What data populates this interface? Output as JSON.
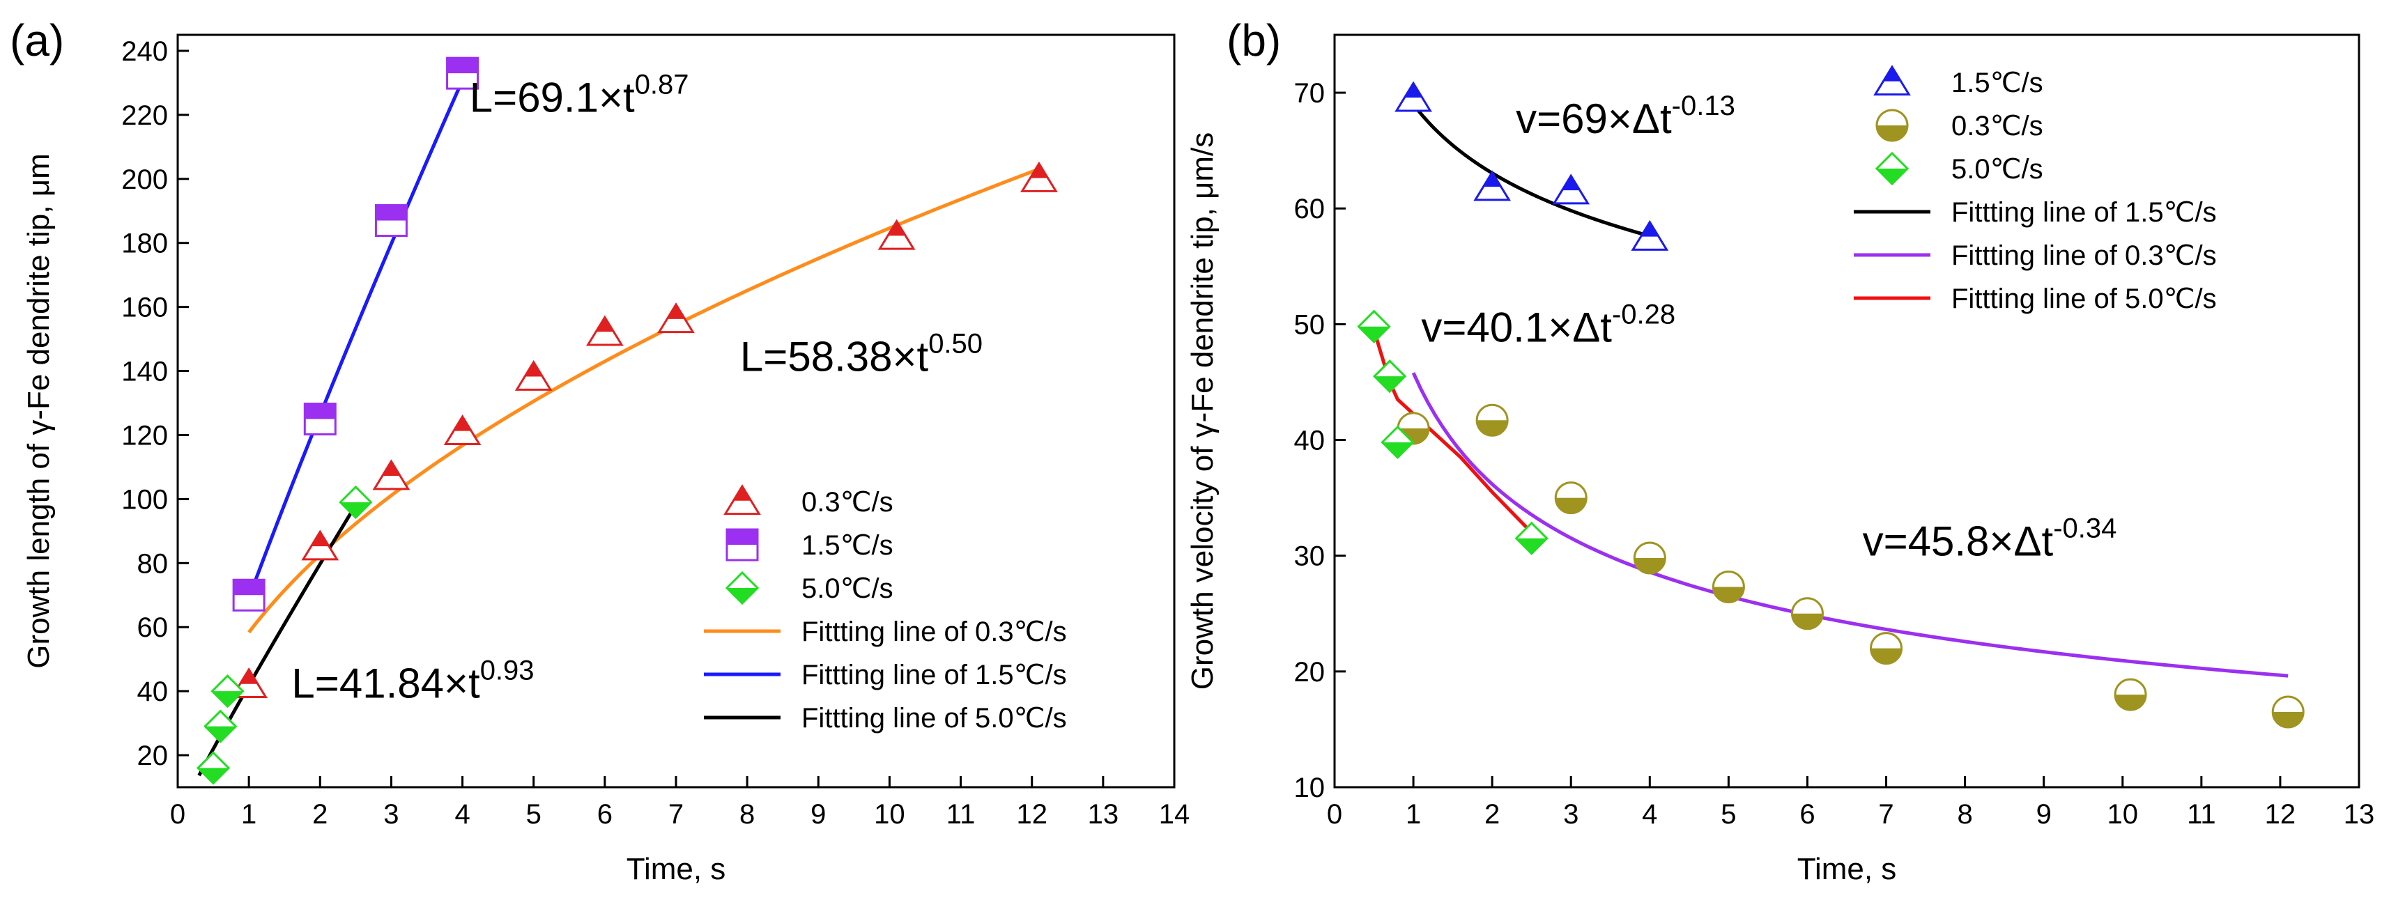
{
  "chart_data": [
    {
      "type": "scatter",
      "panel_label": "(a)",
      "xlabel": "Time, s",
      "ylabel": "Growth length of γ-Fe dendrite tip, μm",
      "xlim": [
        0,
        14
      ],
      "ylim": [
        10,
        245
      ],
      "x_ticks": [
        0,
        1,
        2,
        3,
        4,
        5,
        6,
        7,
        8,
        9,
        10,
        11,
        12,
        13,
        14
      ],
      "y_ticks": [
        20,
        40,
        60,
        80,
        100,
        120,
        140,
        160,
        180,
        200,
        220,
        240
      ],
      "series": [
        {
          "name": "0.3℃/s",
          "marker": "triangle",
          "color": "#e02020",
          "x": [
            1.0,
            2.0,
            3.0,
            4.0,
            5.0,
            6.0,
            7.0,
            10.1,
            12.1
          ],
          "y": [
            42,
            85,
            107,
            121,
            138,
            152,
            156,
            182,
            200
          ]
        },
        {
          "name": "1.5℃/s",
          "marker": "square",
          "color": "#9b30f0",
          "x": [
            1.0,
            2.0,
            3.0,
            4.0
          ],
          "y": [
            70,
            125,
            187,
            233
          ]
        },
        {
          "name": "5.0℃/s",
          "marker": "diamond",
          "color": "#22dd22",
          "x": [
            0.5,
            0.6,
            0.7,
            2.5
          ],
          "y": [
            16,
            29,
            40,
            99
          ]
        }
      ],
      "fits": [
        {
          "name": "Fittting line of 0.3℃/s",
          "color": "#ff8c1a",
          "a": 58.38,
          "b": 0.5,
          "x_range": [
            1.0,
            12.1
          ]
        },
        {
          "name": "Fittting line of 1.5℃/s",
          "color": "#1a1aff",
          "a": 69.1,
          "b": 0.87,
          "x_range": [
            1.0,
            4.0
          ]
        },
        {
          "name": "Fittting line of 5.0℃/s",
          "color": "#000000",
          "a": 41.84,
          "b": 0.93,
          "x_range": [
            0.3,
            2.5
          ]
        }
      ],
      "annotations": [
        {
          "base": "L=69.1×t",
          "exp": "0.87",
          "anchor": [
            4.1,
            221
          ]
        },
        {
          "base": "L=58.38×t",
          "exp": "0.50",
          "anchor": [
            7.9,
            140
          ]
        },
        {
          "base": "L=41.84×t",
          "exp": "0.93",
          "anchor": [
            1.6,
            38
          ]
        }
      ],
      "legend_position": "lower-right"
    },
    {
      "type": "scatter",
      "panel_label": "(b)",
      "xlabel": "Time, s",
      "ylabel": "Growth velocity of γ-Fe dendrite tip, μm/s",
      "xlim": [
        0,
        13
      ],
      "ylim": [
        10,
        75
      ],
      "x_ticks": [
        0,
        1,
        2,
        3,
        4,
        5,
        6,
        7,
        8,
        9,
        10,
        11,
        12,
        13
      ],
      "y_ticks": [
        10,
        20,
        30,
        40,
        50,
        60,
        70
      ],
      "series": [
        {
          "name": "1.5℃/s",
          "marker": "triangle",
          "color": "#1a1aee",
          "x": [
            1.0,
            2.0,
            3.0,
            4.0
          ],
          "y": [
            69.5,
            61.8,
            61.5,
            57.5
          ]
        },
        {
          "name": "0.3℃/s",
          "marker": "circle",
          "color": "#a09420",
          "x": [
            1.0,
            2.0,
            3.0,
            4.0,
            5.0,
            6.0,
            7.0,
            10.1,
            12.1
          ],
          "y": [
            41.0,
            41.7,
            35.0,
            29.8,
            27.3,
            25.0,
            22.0,
            18.0,
            16.5
          ]
        },
        {
          "name": "5.0℃/s",
          "marker": "diamond",
          "color": "#22dd22",
          "x": [
            0.5,
            0.7,
            0.8,
            2.5
          ],
          "y": [
            49.8,
            45.5,
            39.8,
            31.5
          ]
        }
      ],
      "fits": [
        {
          "name": "Fittting line of 1.5℃/s",
          "color": "#000000",
          "type": "power",
          "a": 69,
          "b": -0.13,
          "x_range": [
            1.0,
            4.0
          ]
        },
        {
          "name": "Fittting line of 0.3℃/s",
          "color": "#9b30f0",
          "type": "power",
          "a": 45.8,
          "b": -0.34,
          "x_range": [
            1.0,
            12.1
          ]
        },
        {
          "name": "Fittting line of 5.0℃/s",
          "color": "#ee1111",
          "type": "polyline",
          "x": [
            0.5,
            0.7,
            0.8,
            1.2,
            1.6,
            2.0,
            2.5
          ],
          "y": [
            49.5,
            45.0,
            43.5,
            41.0,
            38.5,
            35.5,
            32.0
          ]
        }
      ],
      "annotations": [
        {
          "base": "v=69×Δt",
          "exp": "-0.13",
          "anchor": [
            2.3,
            66.5
          ]
        },
        {
          "base": "v=40.1×Δt",
          "exp": "-0.28",
          "anchor": [
            1.1,
            48.5
          ]
        },
        {
          "base": "v=45.8×Δt",
          "exp": "-0.34",
          "anchor": [
            6.7,
            30.0
          ]
        }
      ],
      "legend_position": "upper-right"
    }
  ]
}
